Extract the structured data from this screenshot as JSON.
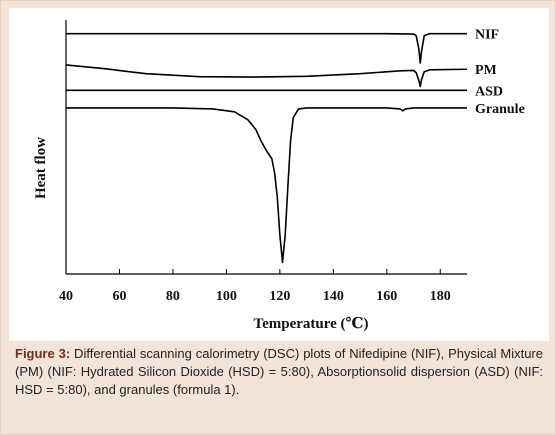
{
  "chart_data": {
    "type": "line",
    "x_axis": {
      "label": "Temperature (℃)",
      "range": [
        40,
        190
      ],
      "ticks": [
        "40",
        "60",
        "80",
        "100",
        "120",
        "140",
        "160",
        "180"
      ]
    },
    "y_axis": {
      "label": "Heat flow",
      "ticks": []
    },
    "grid": false,
    "legend_position": "right",
    "series": [
      {
        "name": "NIF",
        "color": "#000000",
        "baseline": 0.93,
        "points": [
          [
            40,
            0.93
          ],
          [
            100,
            0.93
          ],
          [
            160,
            0.93
          ],
          [
            170,
            0.928
          ],
          [
            171,
            0.92
          ],
          [
            172,
            0.85
          ],
          [
            172.5,
            0.78
          ],
          [
            173,
            0.84
          ],
          [
            174,
            0.92
          ],
          [
            176,
            0.93
          ],
          [
            190,
            0.93
          ]
        ]
      },
      {
        "name": "PM",
        "color": "#000000",
        "points": [
          [
            40,
            0.77
          ],
          [
            55,
            0.75
          ],
          [
            70,
            0.725
          ],
          [
            90,
            0.71
          ],
          [
            110,
            0.708
          ],
          [
            130,
            0.712
          ],
          [
            150,
            0.725
          ],
          [
            165,
            0.74
          ],
          [
            170,
            0.742
          ],
          [
            171,
            0.73
          ],
          [
            172,
            0.69
          ],
          [
            172.5,
            0.66
          ],
          [
            173,
            0.695
          ],
          [
            174,
            0.735
          ],
          [
            176,
            0.745
          ],
          [
            190,
            0.748
          ]
        ]
      },
      {
        "name": "ASD",
        "color": "#000000",
        "points": [
          [
            40,
            0.64
          ],
          [
            190,
            0.64
          ]
        ]
      },
      {
        "name": "Granule",
        "color": "#000000",
        "points": [
          [
            40,
            0.55
          ],
          [
            80,
            0.55
          ],
          [
            95,
            0.545
          ],
          [
            103,
            0.53
          ],
          [
            108,
            0.49
          ],
          [
            111,
            0.44
          ],
          [
            113,
            0.38
          ],
          [
            115,
            0.33
          ],
          [
            117,
            0.29
          ],
          [
            118,
            0.22
          ],
          [
            119,
            0.1
          ],
          [
            120,
            -0.1
          ],
          [
            121,
            -0.24
          ],
          [
            122,
            -0.1
          ],
          [
            123,
            0.15
          ],
          [
            124,
            0.38
          ],
          [
            125,
            0.5
          ],
          [
            127,
            0.545
          ],
          [
            130,
            0.55
          ],
          [
            160,
            0.55
          ],
          [
            165,
            0.545
          ],
          [
            166,
            0.535
          ],
          [
            167,
            0.545
          ],
          [
            170,
            0.55
          ],
          [
            190,
            0.55
          ]
        ]
      }
    ]
  },
  "caption": {
    "label": "Figure 3:",
    "text": " Differential scanning calorimetry (DSC) plots of Nifedipine (NIF), Physical Mixture (PM) (NIF: Hydrated Silicon Dioxide (HSD) = 5:80), Absorptionsolid dispersion (ASD) (NIF: HSD = 5:80), and granules (formula 1)."
  }
}
